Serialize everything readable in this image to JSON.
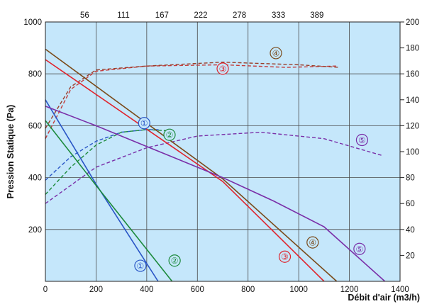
{
  "chart_data": {
    "type": "line",
    "xlabel": "Débit d'air (m3/h)",
    "ylabel": "Pression Statique (Pa)",
    "xlim": [
      0,
      1400
    ],
    "ylim": [
      0,
      1000
    ],
    "y2lim": [
      0,
      200
    ],
    "x_ticks": [
      "0",
      "200",
      "400",
      "600",
      "800",
      "1000",
      "1200",
      "1400"
    ],
    "y_ticks": [
      "200",
      "400",
      "600",
      "800",
      "1000"
    ],
    "x2_ticks": [
      {
        "x": 155,
        "label": "56"
      },
      {
        "x": 308,
        "label": "111"
      },
      {
        "x": 460,
        "label": "167"
      },
      {
        "x": 613,
        "label": "222"
      },
      {
        "x": 766,
        "label": "278"
      },
      {
        "x": 920,
        "label": "333"
      },
      {
        "x": 1072,
        "label": "389"
      }
    ],
    "y2_ticks": [
      {
        "y": 20,
        "label": "20"
      },
      {
        "y": 40,
        "label": "40"
      },
      {
        "y": 60,
        "label": "60"
      },
      {
        "y": 80,
        "label": "80"
      },
      {
        "y": 100,
        "label": "100"
      },
      {
        "y": 120,
        "label": "120"
      },
      {
        "y": 140,
        "label": "140"
      },
      {
        "y": 160,
        "label": "160"
      },
      {
        "y": 180,
        "label": "180"
      },
      {
        "y": 200,
        "label": "200"
      }
    ],
    "grid": true,
    "background": "#c5e7fb",
    "pressure_series": [
      {
        "id": "1",
        "label": "①",
        "color": "#2a56c6",
        "points": [
          [
            0,
            700
          ],
          [
            200,
            375
          ],
          [
            445,
            0
          ]
        ]
      },
      {
        "id": "2",
        "label": "②",
        "color": "#1c8a3c",
        "points": [
          [
            0,
            620
          ],
          [
            200,
            370
          ],
          [
            500,
            0
          ]
        ]
      },
      {
        "id": "3",
        "label": "③",
        "color": "#e0232c",
        "points": [
          [
            0,
            855
          ],
          [
            700,
            385
          ],
          [
            1100,
            0
          ]
        ]
      },
      {
        "id": "4",
        "label": "④",
        "color": "#7a4a1a",
        "points": [
          [
            0,
            895
          ],
          [
            700,
            395
          ],
          [
            1150,
            0
          ]
        ]
      },
      {
        "id": "5",
        "label": "⑤",
        "color": "#7a2fa8",
        "points": [
          [
            0,
            675
          ],
          [
            200,
            600
          ],
          [
            400,
            520
          ],
          [
            700,
            400
          ],
          [
            900,
            310
          ],
          [
            1100,
            210
          ],
          [
            1340,
            0
          ]
        ]
      }
    ],
    "power_series": [
      {
        "id": "1",
        "color": "#2a56c6",
        "points": [
          [
            0,
            78
          ],
          [
            100,
            96
          ],
          [
            200,
            108
          ],
          [
            300,
            115
          ],
          [
            400,
            117
          ],
          [
            450,
            117
          ]
        ]
      },
      {
        "id": "2",
        "color": "#1c8a3c",
        "points": [
          [
            0,
            67
          ],
          [
            100,
            88
          ],
          [
            200,
            105
          ],
          [
            300,
            115
          ],
          [
            400,
            117
          ],
          [
            490,
            116
          ]
        ]
      },
      {
        "id": "3",
        "color": "#c43b3b",
        "points": [
          [
            0,
            110
          ],
          [
            100,
            148
          ],
          [
            200,
            162
          ],
          [
            400,
            166
          ],
          [
            700,
            167
          ],
          [
            950,
            165
          ],
          [
            1150,
            166
          ]
        ]
      },
      {
        "id": "4",
        "color": "#9a3e2a",
        "points": [
          [
            0,
            118
          ],
          [
            100,
            150
          ],
          [
            200,
            163
          ],
          [
            400,
            166
          ],
          [
            700,
            169
          ],
          [
            1000,
            167
          ],
          [
            1160,
            165
          ]
        ]
      },
      {
        "id": "5",
        "color": "#7a2fa8",
        "points": [
          [
            0,
            60
          ],
          [
            200,
            88
          ],
          [
            400,
            103
          ],
          [
            600,
            112
          ],
          [
            850,
            115
          ],
          [
            1100,
            110
          ],
          [
            1330,
            97
          ]
        ]
      }
    ],
    "markers": [
      {
        "text": "①",
        "color": "#2a56c6",
        "x": 390,
        "y": 610
      },
      {
        "text": "②",
        "color": "#1c8a3c",
        "x": 490,
        "y": 565
      },
      {
        "text": "③",
        "color": "#e0232c",
        "x": 700,
        "y": 820
      },
      {
        "text": "④",
        "color": "#7a4a1a",
        "x": 910,
        "y": 880
      },
      {
        "text": "⑤",
        "color": "#7a2fa8",
        "x": 1250,
        "y": 545
      },
      {
        "text": "①",
        "color": "#2a56c6",
        "x": 375,
        "y": 60
      },
      {
        "text": "②",
        "color": "#1c8a3c",
        "x": 510,
        "y": 80
      },
      {
        "text": "③",
        "color": "#e0232c",
        "x": 945,
        "y": 95
      },
      {
        "text": "④",
        "color": "#7a4a1a",
        "x": 1055,
        "y": 150
      },
      {
        "text": "⑤",
        "color": "#7a2fa8",
        "x": 1240,
        "y": 125
      }
    ]
  }
}
